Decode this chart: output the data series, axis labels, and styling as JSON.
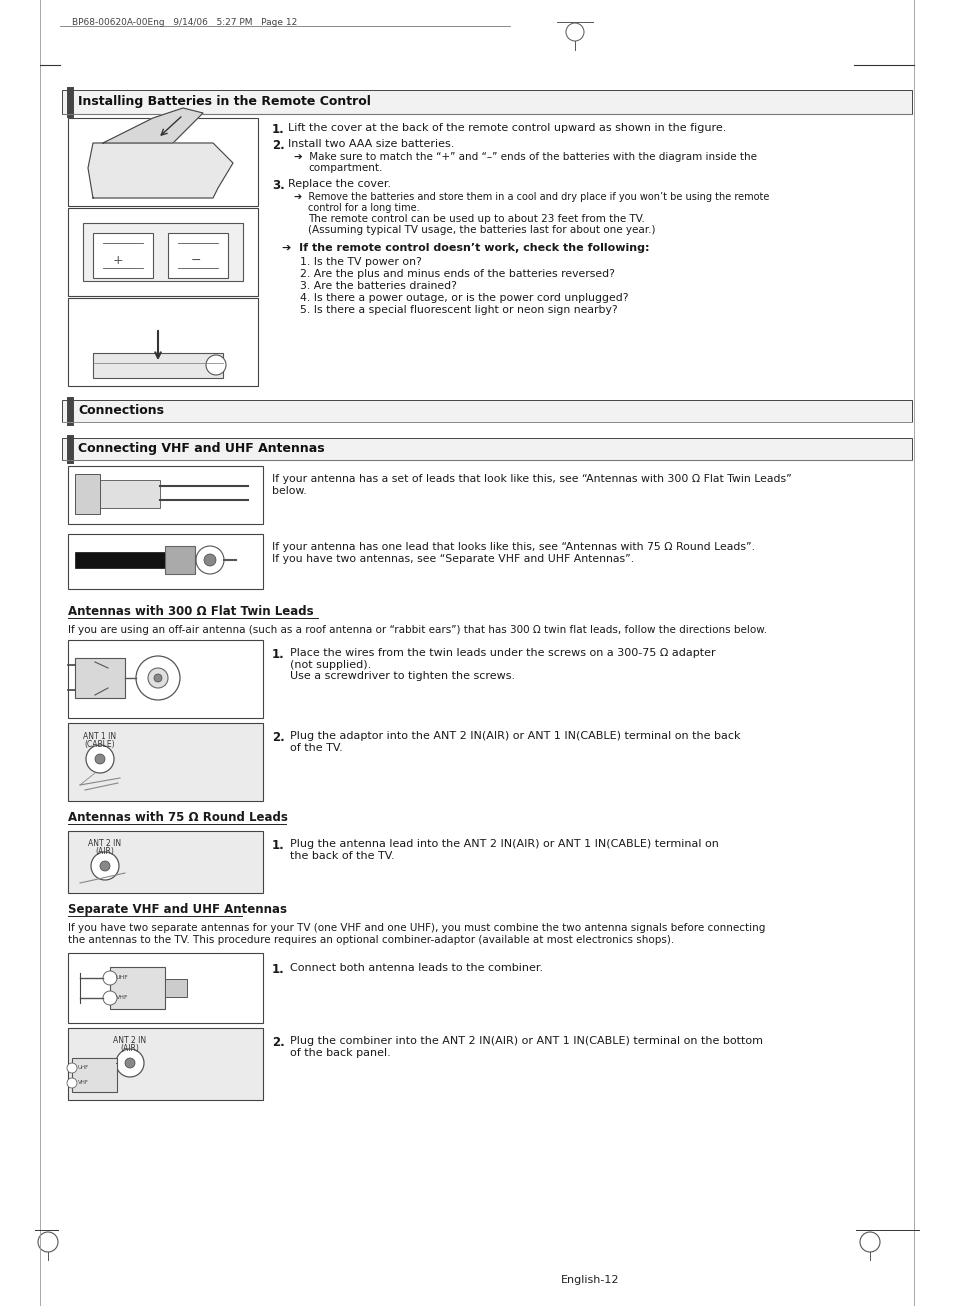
{
  "bg_color": "#ffffff",
  "page_header": "BP68-00620A-00Eng   9/14/06   5:27 PM   Page 12",
  "footer_text": "English-12",
  "section1_title": "Installing Batteries in the Remote Control",
  "section1_step1": "Lift the cover at the back of the remote control upward as shown in the figure.",
  "section1_step2": "Install two AAA size batteries.",
  "section1_step2_sub": "➔  Make sure to match the “+” and “–” ends of the batteries with the diagram inside the\n     compartment.",
  "section1_step3": "Replace the cover.",
  "section1_step3_sub1": "➔  Remove the batteries and store them in a cool and dry place if you won’t be using the remote\n     control for a long time.",
  "section1_step3_sub2": "The remote control can be used up to about 23 feet from the TV.",
  "section1_step3_sub3": "(Assuming typical TV usage, the batteries last for about one year.)",
  "section1_note": "➔  If the remote control doesn’t work, check the following:",
  "section1_note_items": [
    "1. Is the TV power on?",
    "2. Are the plus and minus ends of the batteries reversed?",
    "3. Are the batteries drained?",
    "4. Is there a power outage, or is the power cord unplugged?",
    "5. Is there a special fluorescent light or neon sign nearby?"
  ],
  "section2_title": "Connections",
  "section3_title": "Connecting VHF and UHF Antennas",
  "section3_img1_text": "If your antenna has a set of leads that look like this, see “Antennas with 300 Ω Flat Twin Leads”\nbelow.",
  "section3_img2_text": "If your antenna has one lead that looks like this, see “Antennas with 75 Ω Round Leads”.\nIf you have two antennas, see “Separate VHF and UHF Antennas”.",
  "section3a_title": "Antennas with 300 Ω Flat Twin Leads",
  "section3a_desc": "If you are using an off-air antenna (such as a roof antenna or “rabbit ears”) that has 300 Ω twin flat leads, follow the directions below.",
  "section3a_step1": "Place the wires from the twin leads under the screws on a 300-75 Ω adapter\n(not supplied).\nUse a screwdriver to tighten the screws.",
  "section3a_step2": "Plug the adaptor into the ANT 2 IN(AIR) or ANT 1 IN(CABLE) terminal on the back\nof the TV.",
  "section3b_title": "Antennas with 75 Ω Round Leads",
  "section3b_step1": "Plug the antenna lead into the ANT 2 IN(AIR) or ANT 1 IN(CABLE) terminal on\nthe back of the TV.",
  "section3c_title": "Separate VHF and UHF Antennas",
  "section3c_desc": "If you have two separate antennas for your TV (one VHF and one UHF), you must combine the two antenna signals before connecting\nthe antennas to the TV. This procedure requires an optional combiner-adaptor (available at most electronics shops).",
  "section3c_step1": "Connect both antenna leads to the combiner.",
  "section3c_step2": "Plug the combiner into the ANT 2 IN(AIR) or ANT 1 IN(CABLE) terminal on the bottom\nof the back panel."
}
